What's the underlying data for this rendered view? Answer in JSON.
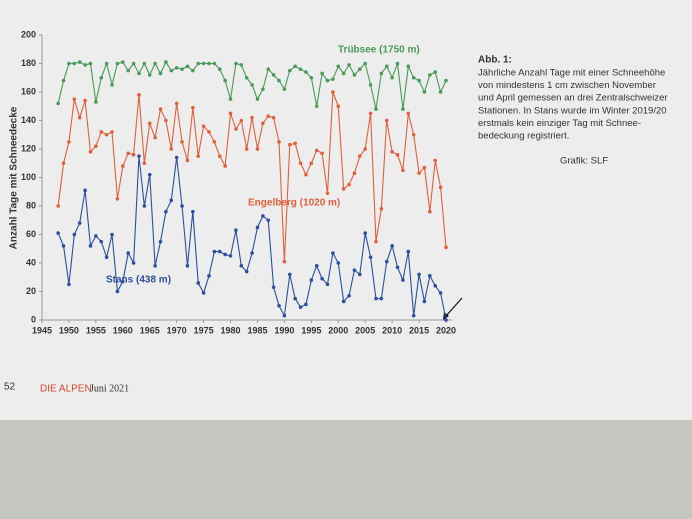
{
  "chart_data": {
    "type": "line",
    "y_label": "Anzahl Tage mit Schneedecke",
    "x": [
      1948,
      1949,
      1950,
      1951,
      1952,
      1953,
      1954,
      1955,
      1956,
      1957,
      1958,
      1959,
      1960,
      1961,
      1962,
      1963,
      1964,
      1965,
      1966,
      1967,
      1968,
      1969,
      1970,
      1971,
      1972,
      1973,
      1974,
      1975,
      1976,
      1977,
      1978,
      1979,
      1980,
      1981,
      1982,
      1983,
      1984,
      1985,
      1986,
      1987,
      1988,
      1989,
      1990,
      1991,
      1992,
      1993,
      1994,
      1995,
      1996,
      1997,
      1998,
      1999,
      2000,
      2001,
      2002,
      2003,
      2004,
      2005,
      2006,
      2007,
      2008,
      2009,
      2010,
      2011,
      2012,
      2013,
      2014,
      2015,
      2016,
      2017,
      2018,
      2019,
      2020
    ],
    "series": [
      {
        "name": "Trübsee (1750 m)",
        "color": "#4a9a58",
        "values": [
          152,
          168,
          180,
          180,
          181,
          179,
          180,
          153,
          170,
          180,
          165,
          180,
          181,
          175,
          180,
          173,
          180,
          172,
          180,
          173,
          181,
          175,
          177,
          176,
          178,
          175,
          180,
          180,
          180,
          180,
          176,
          168,
          155,
          180,
          179,
          170,
          165,
          155,
          162,
          176,
          172,
          168,
          162,
          175,
          178,
          176,
          174,
          170,
          150,
          173,
          168,
          169,
          178,
          173,
          179,
          172,
          176,
          180,
          165,
          148,
          173,
          178,
          170,
          180,
          148,
          178,
          170,
          168,
          160,
          172,
          174,
          160,
          168
        ]
      },
      {
        "name": "Engelberg (1020 m)",
        "color": "#e0603e",
        "values": [
          80,
          110,
          125,
          155,
          142,
          154,
          118,
          122,
          132,
          130,
          132,
          85,
          108,
          117,
          116,
          158,
          110,
          138,
          128,
          148,
          140,
          120,
          152,
          125,
          112,
          149,
          115,
          136,
          132,
          125,
          115,
          108,
          145,
          134,
          140,
          120,
          142,
          120,
          138,
          143,
          142,
          125,
          41,
          123,
          124,
          110,
          102,
          110,
          119,
          117,
          89,
          160,
          150,
          92,
          95,
          103,
          115,
          120,
          145,
          55,
          78,
          140,
          118,
          116,
          105,
          145,
          130,
          103,
          107,
          76,
          112,
          93,
          51
        ]
      },
      {
        "name": "Stans (438 m)",
        "color": "#2c4f9e",
        "values": [
          61,
          52,
          25,
          60,
          68,
          91,
          52,
          59,
          55,
          44,
          60,
          20,
          27,
          47,
          40,
          115,
          80,
          102,
          38,
          55,
          76,
          84,
          114,
          80,
          38,
          76,
          26,
          19,
          31,
          48,
          48,
          46,
          45,
          63,
          38,
          34,
          47,
          65,
          73,
          70,
          23,
          10,
          3,
          32,
          15,
          9,
          11,
          28,
          38,
          29,
          25,
          47,
          40,
          13,
          17,
          35,
          32,
          61,
          44,
          15,
          15,
          41,
          52,
          37,
          28,
          48,
          3,
          32,
          13,
          31,
          24,
          19,
          0
        ]
      }
    ],
    "xlim": [
      1945,
      2020
    ],
    "xticks": [
      1945,
      1950,
      1955,
      1960,
      1965,
      1970,
      1975,
      1980,
      1985,
      1990,
      1995,
      2000,
      2005,
      2010,
      2015,
      2020
    ],
    "ylim": [
      0,
      200
    ],
    "yticks": [
      0,
      20,
      40,
      60,
      80,
      100,
      120,
      140,
      160,
      180,
      200
    ],
    "grid": false
  },
  "caption": {
    "title": "Abb. 1:",
    "lines": [
      "Jährliche Anzahl Tage mit einer Schneehöhe",
      "von mindestens 1 cm zwischen November",
      "und April gemessen an drei Zentralschweizer",
      "Stationen. In Stans wurde im Winter 2019/20",
      "erstmals kein einziger Tag mit Schnee-",
      "bedeckung registriert."
    ],
    "credit": "Grafik: SLF"
  },
  "footer": {
    "page": "52",
    "magazine": "DIE ALPEN",
    "issue": "Juni 2021"
  }
}
